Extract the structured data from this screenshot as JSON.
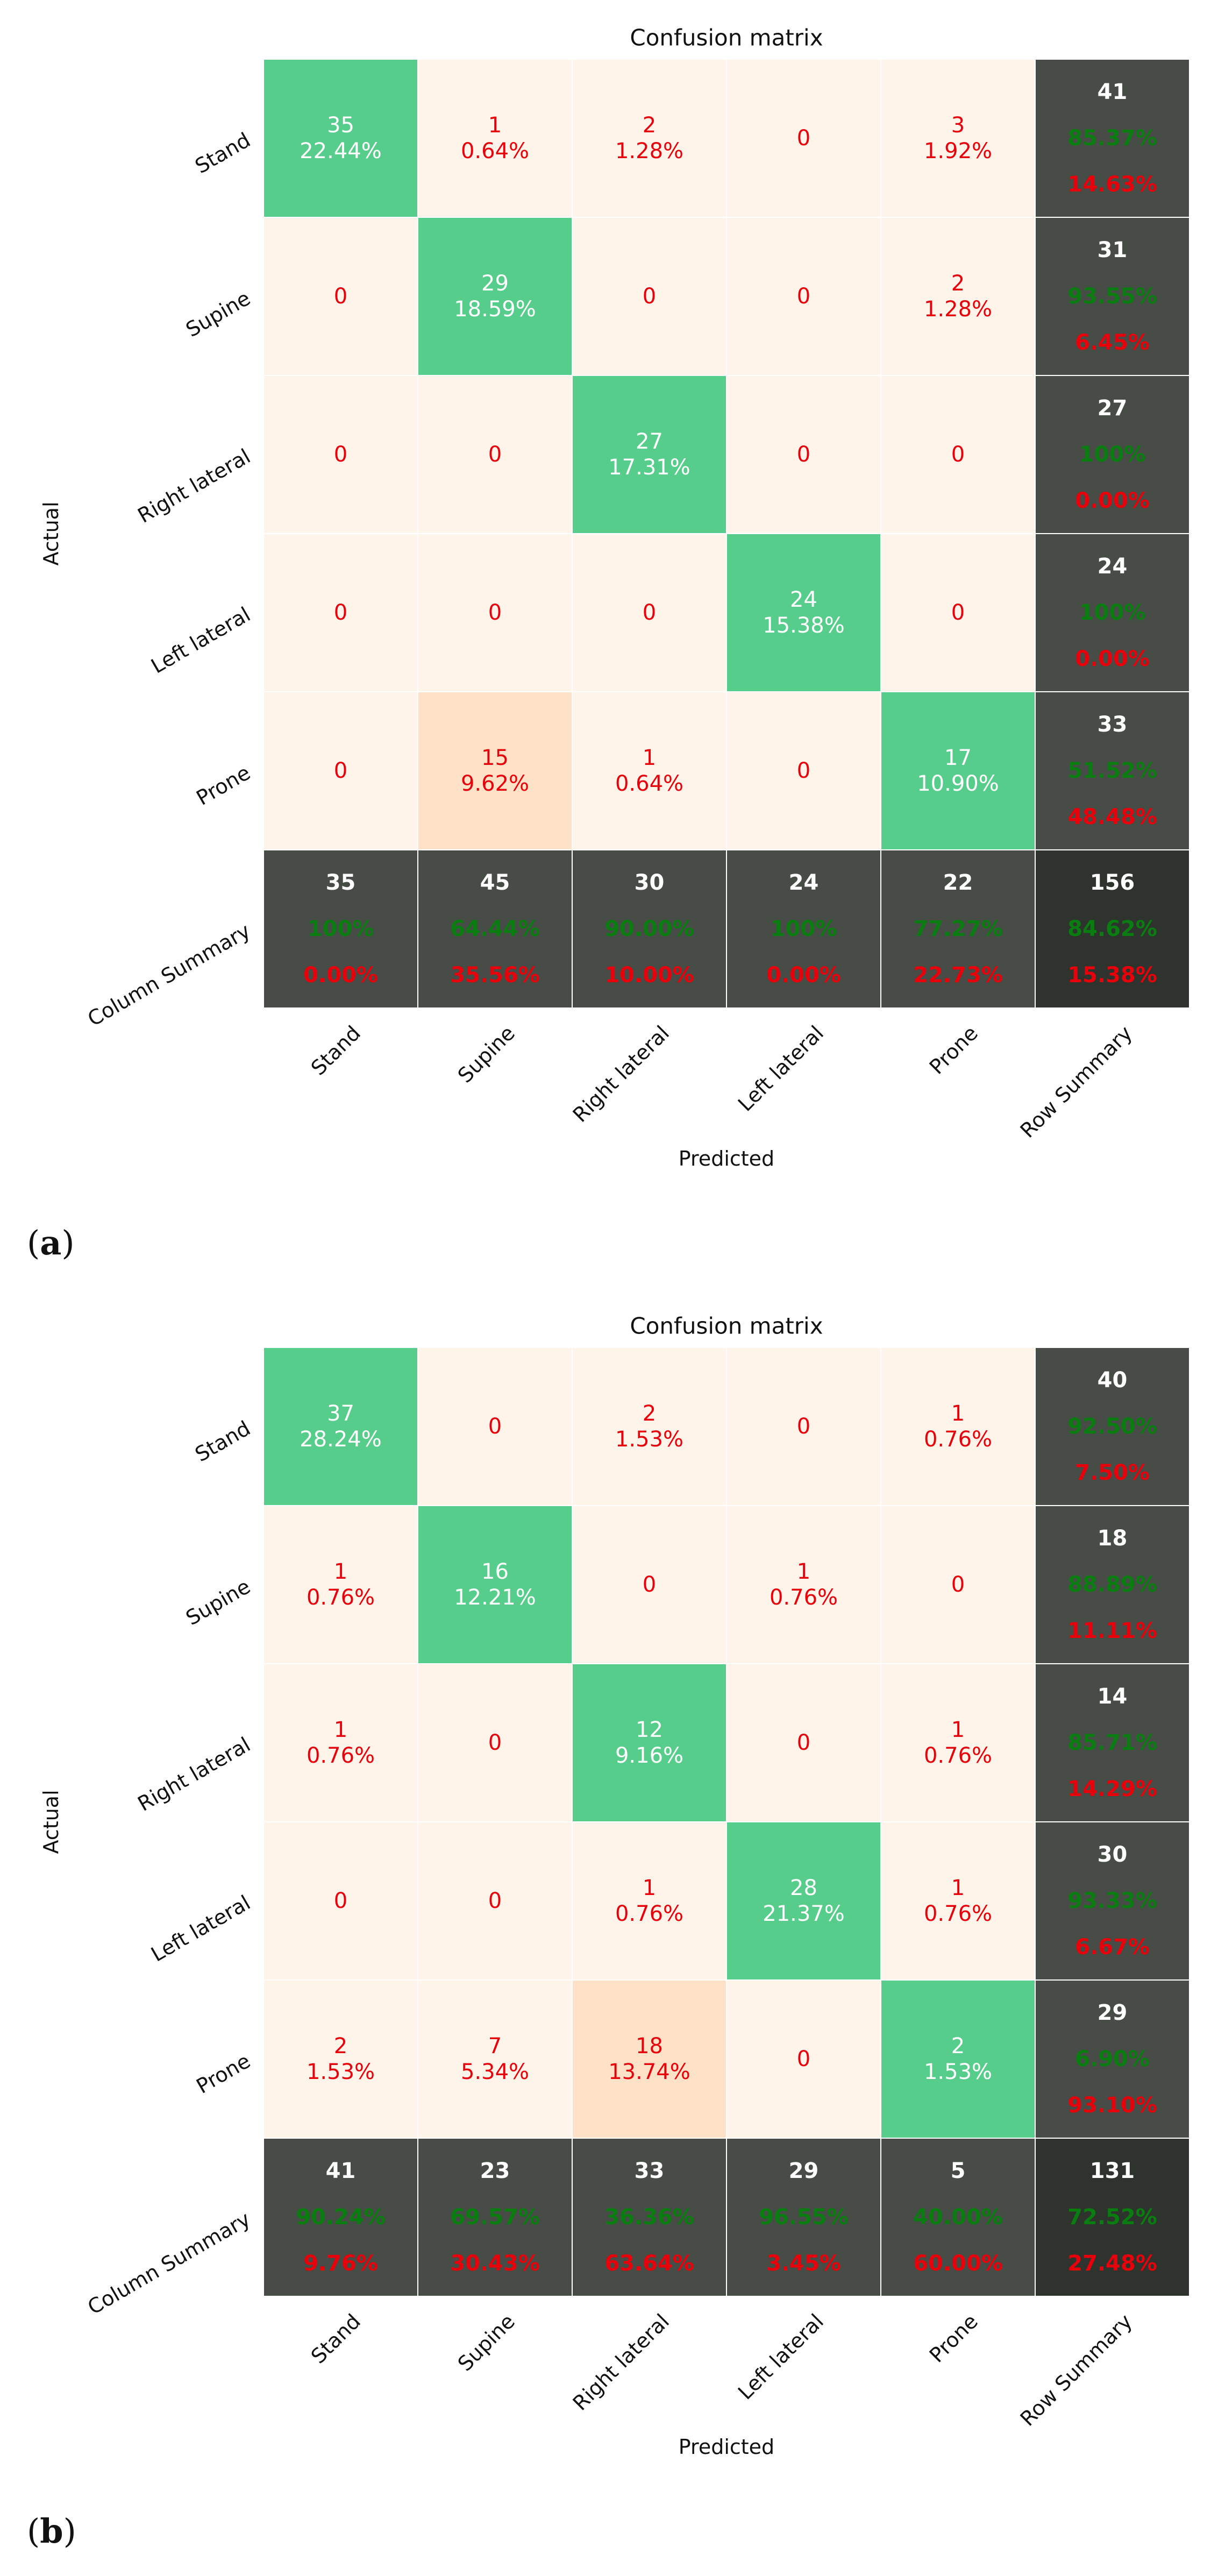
{
  "chart_data": [
    {
      "panel_label": "(a)",
      "type": "heatmap",
      "title": "Confusion matrix",
      "xlabel": "Predicted",
      "ylabel": "Actual",
      "classes": [
        "Stand",
        "Supine",
        "Right lateral",
        "Left lateral",
        "Prone"
      ],
      "row_labels": [
        "Stand",
        "Supine",
        "Right lateral",
        "Left lateral",
        "Prone",
        "Column Summary"
      ],
      "col_labels": [
        "Stand",
        "Supine",
        "Right lateral",
        "Left lateral",
        "Prone",
        "Row Summary"
      ],
      "matrix": [
        [
          {
            "count": "35",
            "pct": "22.44%"
          },
          {
            "count": "1",
            "pct": "0.64%"
          },
          {
            "count": "2",
            "pct": "1.28%"
          },
          {
            "count": "0",
            "pct": ""
          },
          {
            "count": "3",
            "pct": "1.92%"
          }
        ],
        [
          {
            "count": "0",
            "pct": ""
          },
          {
            "count": "29",
            "pct": "18.59%"
          },
          {
            "count": "0",
            "pct": ""
          },
          {
            "count": "0",
            "pct": ""
          },
          {
            "count": "2",
            "pct": "1.28%"
          }
        ],
        [
          {
            "count": "0",
            "pct": ""
          },
          {
            "count": "0",
            "pct": ""
          },
          {
            "count": "27",
            "pct": "17.31%"
          },
          {
            "count": "0",
            "pct": ""
          },
          {
            "count": "0",
            "pct": ""
          }
        ],
        [
          {
            "count": "0",
            "pct": ""
          },
          {
            "count": "0",
            "pct": ""
          },
          {
            "count": "0",
            "pct": ""
          },
          {
            "count": "24",
            "pct": "15.38%"
          },
          {
            "count": "0",
            "pct": ""
          }
        ],
        [
          {
            "count": "0",
            "pct": ""
          },
          {
            "count": "15",
            "pct": "9.62%"
          },
          {
            "count": "1",
            "pct": "0.64%"
          },
          {
            "count": "0",
            "pct": ""
          },
          {
            "count": "17",
            "pct": "10.90%"
          }
        ]
      ],
      "row_summary": [
        {
          "total": "41",
          "correct": "85.37%",
          "error": "14.63%"
        },
        {
          "total": "31",
          "correct": "93.55%",
          "error": "6.45%"
        },
        {
          "total": "27",
          "correct": "100%",
          "error": "0.00%"
        },
        {
          "total": "24",
          "correct": "100%",
          "error": "0.00%"
        },
        {
          "total": "33",
          "correct": "51.52%",
          "error": "48.48%"
        }
      ],
      "column_summary": [
        {
          "total": "35",
          "correct": "100%",
          "error": "0.00%"
        },
        {
          "total": "45",
          "correct": "64.44%",
          "error": "35.56%"
        },
        {
          "total": "30",
          "correct": "90.00%",
          "error": "10.00%"
        },
        {
          "total": "24",
          "correct": "100%",
          "error": "0.00%"
        },
        {
          "total": "22",
          "correct": "77.27%",
          "error": "22.73%"
        }
      ],
      "overall": {
        "total": "156",
        "correct": "84.62%",
        "error": "15.38%"
      }
    },
    {
      "panel_label": "(b)",
      "type": "heatmap",
      "title": "Confusion matrix",
      "xlabel": "Predicted",
      "ylabel": "Actual",
      "classes": [
        "Stand",
        "Supine",
        "Right lateral",
        "Left lateral",
        "Prone"
      ],
      "row_labels": [
        "Stand",
        "Supine",
        "Right lateral",
        "Left lateral",
        "Prone",
        "Column Summary"
      ],
      "col_labels": [
        "Stand",
        "Supine",
        "Right lateral",
        "Left lateral",
        "Prone",
        "Row Summary"
      ],
      "matrix": [
        [
          {
            "count": "37",
            "pct": "28.24%"
          },
          {
            "count": "0",
            "pct": ""
          },
          {
            "count": "2",
            "pct": "1.53%"
          },
          {
            "count": "0",
            "pct": ""
          },
          {
            "count": "1",
            "pct": "0.76%"
          }
        ],
        [
          {
            "count": "1",
            "pct": "0.76%"
          },
          {
            "count": "16",
            "pct": "12.21%"
          },
          {
            "count": "0",
            "pct": ""
          },
          {
            "count": "1",
            "pct": "0.76%"
          },
          {
            "count": "0",
            "pct": ""
          }
        ],
        [
          {
            "count": "1",
            "pct": "0.76%"
          },
          {
            "count": "0",
            "pct": ""
          },
          {
            "count": "12",
            "pct": "9.16%"
          },
          {
            "count": "0",
            "pct": ""
          },
          {
            "count": "1",
            "pct": "0.76%"
          }
        ],
        [
          {
            "count": "0",
            "pct": ""
          },
          {
            "count": "0",
            "pct": ""
          },
          {
            "count": "1",
            "pct": "0.76%"
          },
          {
            "count": "28",
            "pct": "21.37%"
          },
          {
            "count": "1",
            "pct": "0.76%"
          }
        ],
        [
          {
            "count": "2",
            "pct": "1.53%"
          },
          {
            "count": "7",
            "pct": "5.34%"
          },
          {
            "count": "18",
            "pct": "13.74%"
          },
          {
            "count": "0",
            "pct": ""
          },
          {
            "count": "2",
            "pct": "1.53%"
          }
        ]
      ],
      "row_summary": [
        {
          "total": "40",
          "correct": "92.50%",
          "error": "7.50%"
        },
        {
          "total": "18",
          "correct": "88.89%",
          "error": "11.11%"
        },
        {
          "total": "14",
          "correct": "85.71%",
          "error": "14.29%"
        },
        {
          "total": "30",
          "correct": "93.33%",
          "error": "6.67%"
        },
        {
          "total": "29",
          "correct": "6.90%",
          "error": "93.10%"
        }
      ],
      "column_summary": [
        {
          "total": "41",
          "correct": "90.24%",
          "error": "9.76%"
        },
        {
          "total": "23",
          "correct": "69.57%",
          "error": "30.43%"
        },
        {
          "total": "33",
          "correct": "36.36%",
          "error": "63.64%"
        },
        {
          "total": "29",
          "correct": "96.55%",
          "error": "3.45%"
        },
        {
          "total": "5",
          "correct": "40.00%",
          "error": "60.00%"
        }
      ],
      "overall": {
        "total": "131",
        "correct": "72.52%",
        "error": "27.48%"
      }
    }
  ],
  "colors": {
    "diagonal": "#57cd8c",
    "cell_base": "#fef4ea",
    "cell_high": "#fde2c8",
    "summary": "#474c46",
    "overall": "#2e332d",
    "text_red": "#e8000b",
    "text_green": "#0a7d10",
    "text_white": "#ffffff",
    "grid": "#ffffff"
  }
}
